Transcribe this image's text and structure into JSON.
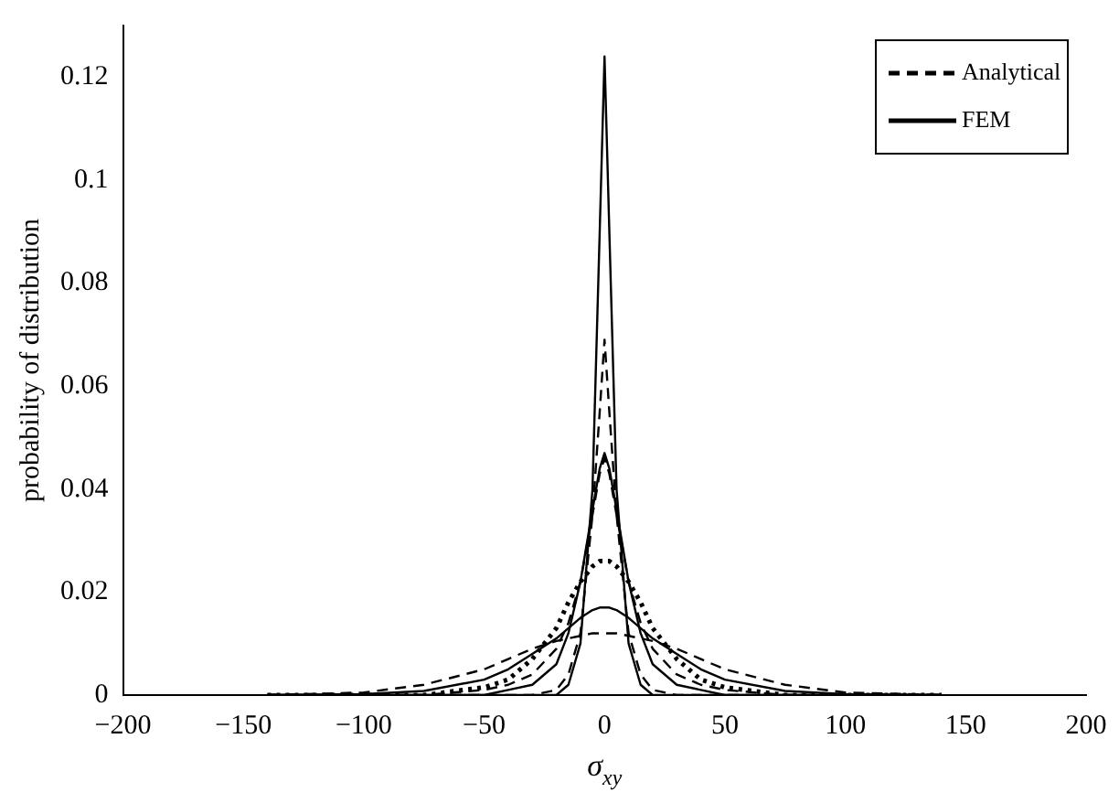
{
  "chart_data": {
    "type": "line",
    "xlabel": "σ$_{xy}$",
    "ylabel": "probability of distribution",
    "x": [
      -140,
      -100,
      -75,
      -50,
      -40,
      -30,
      -20,
      -15,
      -10,
      -5,
      -2,
      0,
      2,
      5,
      10,
      15,
      20,
      30,
      40,
      50,
      75,
      100,
      140
    ],
    "xlim": [
      -200,
      200
    ],
    "ylim": [
      0,
      0.13
    ],
    "xticks": [
      {
        "value": -200,
        "label": "−200"
      },
      {
        "value": -150,
        "label": "−150"
      },
      {
        "value": -100,
        "label": "−100"
      },
      {
        "value": -50,
        "label": "−50"
      },
      0,
      50,
      100,
      150,
      200
    ],
    "yticks": [
      0,
      0.02,
      0.04,
      0.06,
      0.08,
      0.1,
      0.12
    ],
    "grid": false,
    "legend": "top right",
    "marker": "none",
    "series": [
      {
        "name": "Analytical",
        "color": "#000000",
        "line_style": "dashed",
        "values": [
          0,
          0,
          0,
          0,
          0,
          0,
          0.001,
          0.004,
          0.012,
          0.035,
          0.055,
          0.069,
          0.055,
          0.035,
          0.012,
          0.004,
          0.001,
          0,
          0,
          0,
          0,
          0,
          0
        ]
      },
      {
        "name": "FEM",
        "color": "#000000",
        "line_style": "solid",
        "values": [
          0,
          0,
          0,
          0,
          0,
          0,
          0,
          0.002,
          0.01,
          0.04,
          0.09,
          0.124,
          0.09,
          0.04,
          0.01,
          0.002,
          0,
          0,
          0,
          0,
          0,
          0,
          0
        ]
      },
      {
        "color": "#000000",
        "line_style": "dashed",
        "values": [
          0,
          0,
          0,
          0.001,
          0.002,
          0.004,
          0.009,
          0.014,
          0.022,
          0.035,
          0.043,
          0.046,
          0.043,
          0.035,
          0.022,
          0.014,
          0.009,
          0.004,
          0.002,
          0.001,
          0,
          0,
          0
        ]
      },
      {
        "color": "#000000",
        "line_style": "solid",
        "values": [
          0,
          0,
          0,
          0,
          0.001,
          0.002,
          0.006,
          0.012,
          0.022,
          0.036,
          0.044,
          0.047,
          0.044,
          0.036,
          0.022,
          0.012,
          0.006,
          0.002,
          0.001,
          0,
          0,
          0,
          0
        ]
      },
      {
        "color": "#000000",
        "line_style": "dotted",
        "values": [
          0,
          0,
          0,
          0.0015,
          0.003,
          0.007,
          0.013,
          0.018,
          0.022,
          0.025,
          0.026,
          0.026,
          0.026,
          0.025,
          0.022,
          0.018,
          0.013,
          0.007,
          0.003,
          0.0015,
          0,
          0,
          0
        ]
      },
      {
        "color": "#000000",
        "line_style": "solid",
        "values": [
          0,
          0.0002,
          0.0008,
          0.003,
          0.005,
          0.008,
          0.011,
          0.013,
          0.015,
          0.0165,
          0.017,
          0.017,
          0.017,
          0.0165,
          0.015,
          0.013,
          0.011,
          0.008,
          0.005,
          0.003,
          0.0008,
          0.0002,
          0
        ]
      },
      {
        "color": "#000000",
        "line_style": "dashed",
        "values": [
          0,
          0.0005,
          0.002,
          0.005,
          0.007,
          0.009,
          0.0105,
          0.011,
          0.0115,
          0.012,
          0.012,
          0.012,
          0.012,
          0.012,
          0.0115,
          0.011,
          0.0105,
          0.009,
          0.007,
          0.005,
          0.002,
          0.0005,
          0
        ]
      }
    ]
  }
}
